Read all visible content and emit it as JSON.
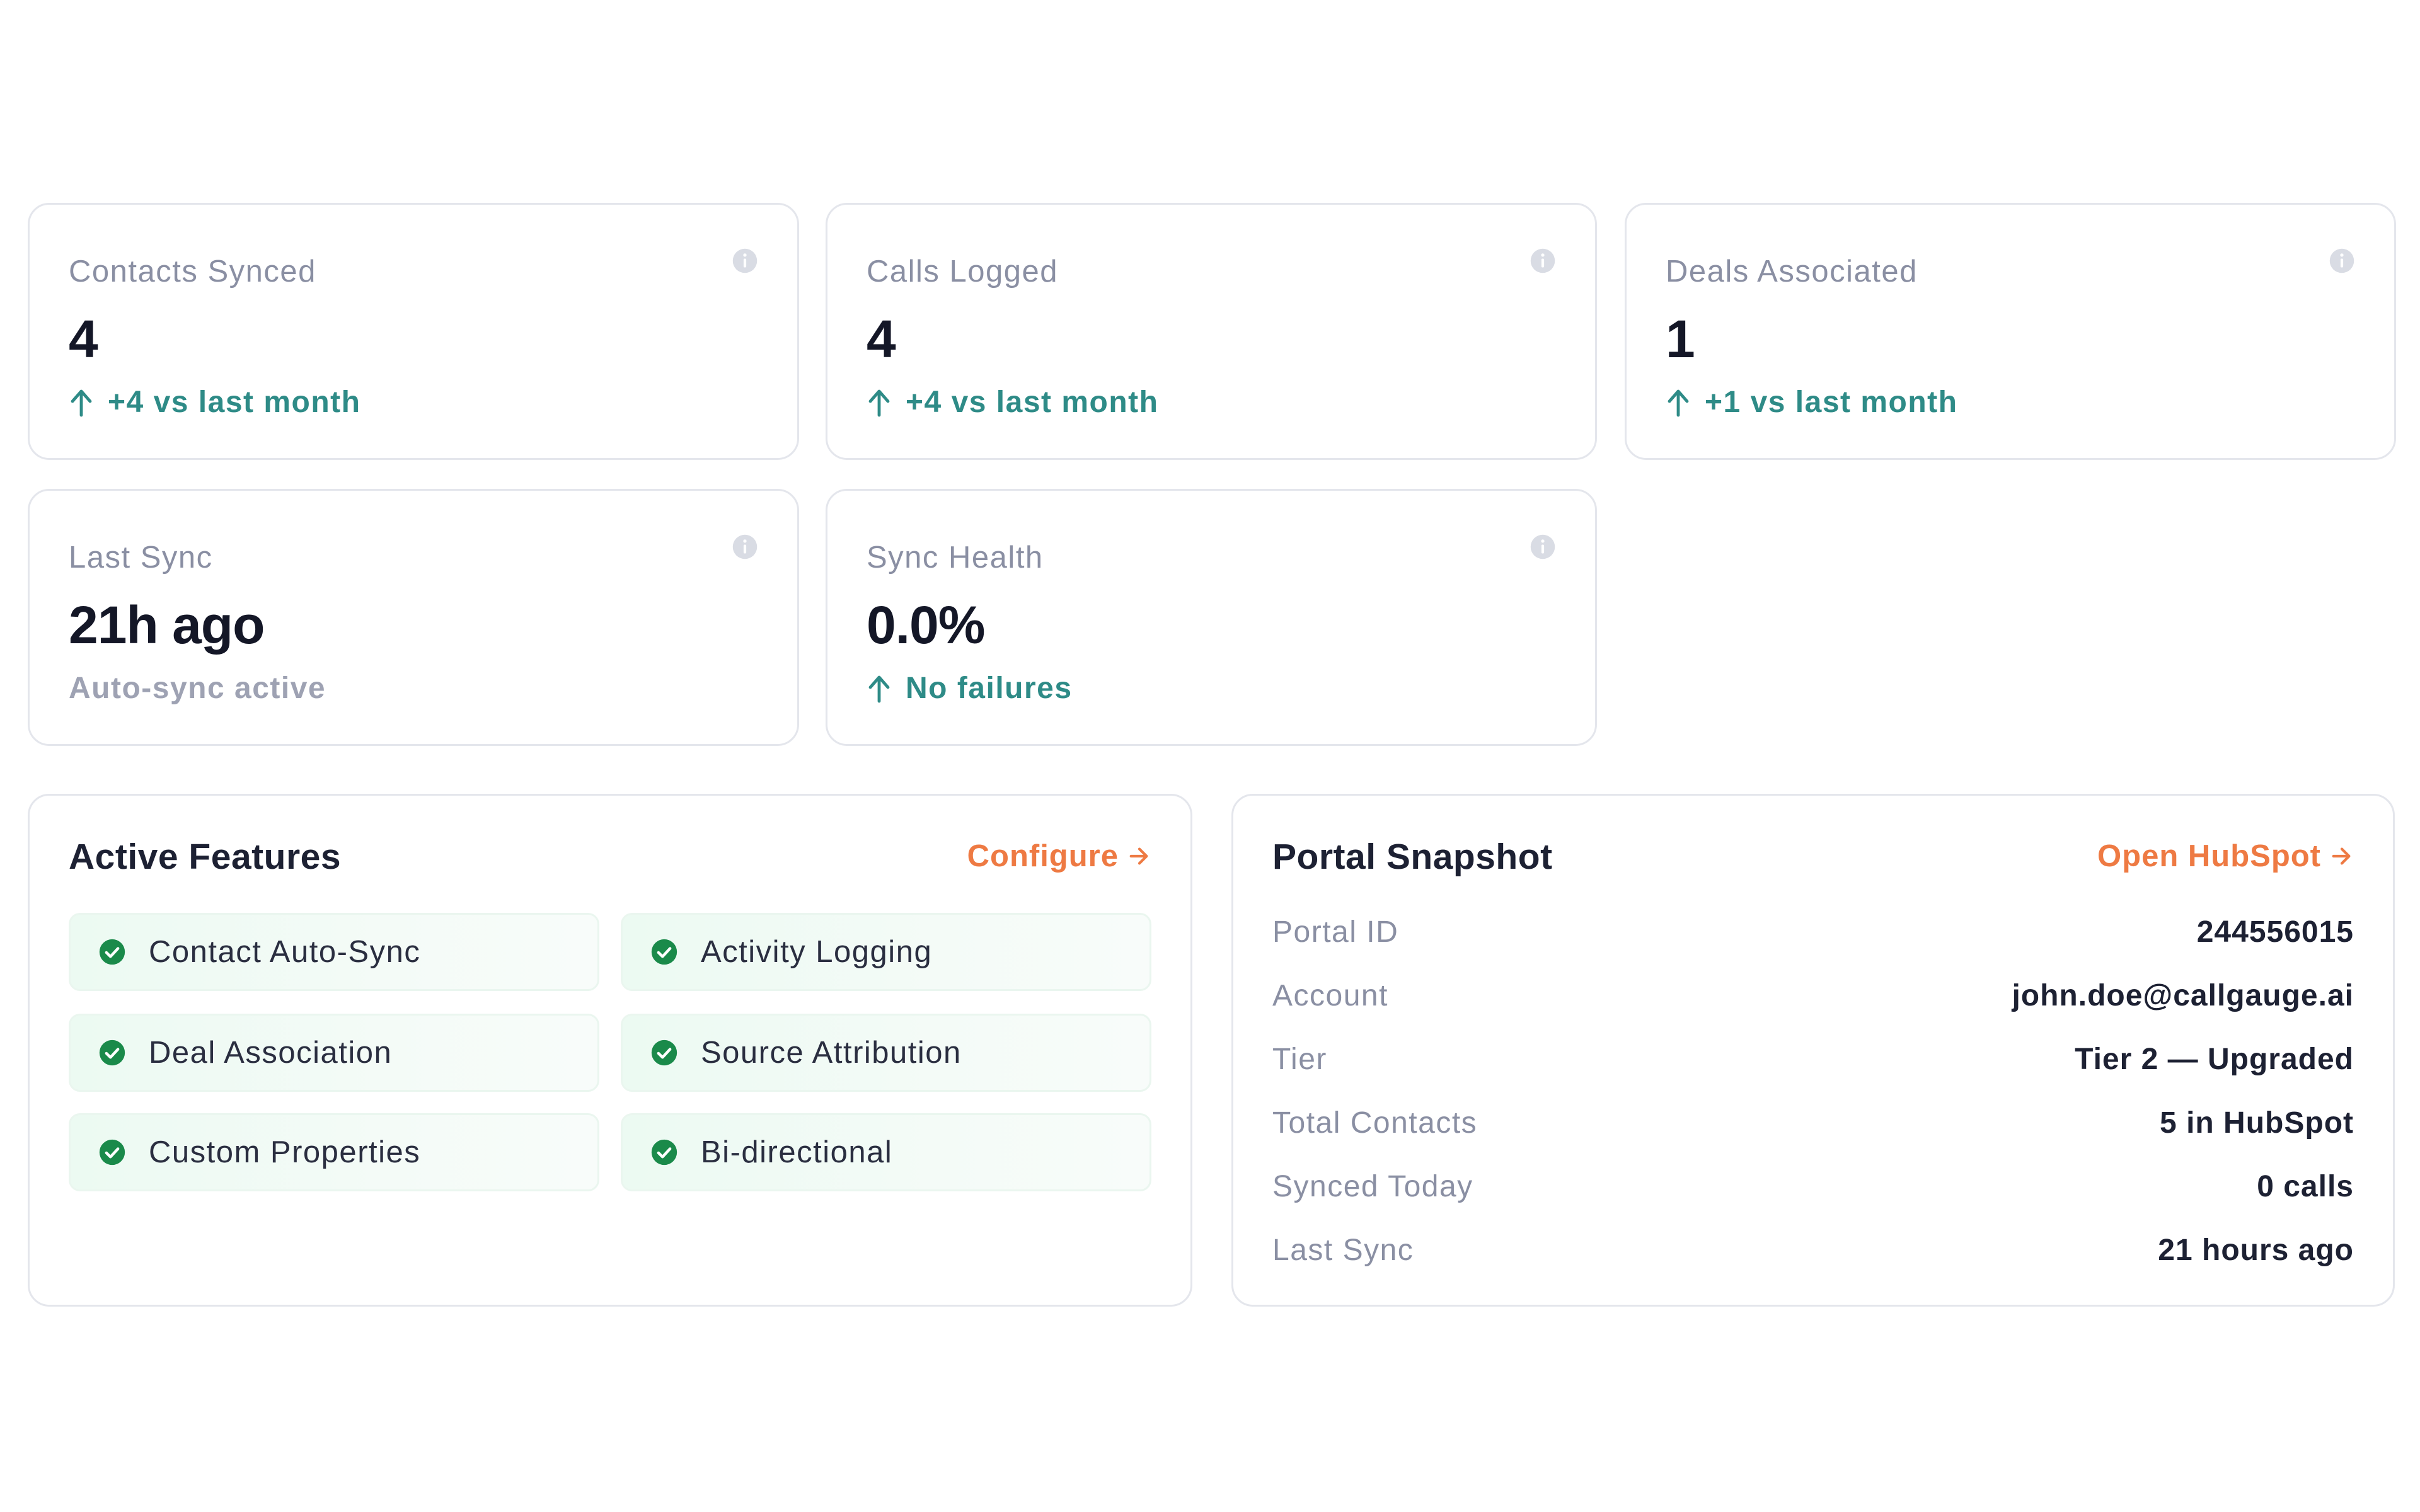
{
  "stats": [
    {
      "label": "Contacts Synced",
      "value": "4",
      "sub": "+4 vs last month",
      "trend": "up"
    },
    {
      "label": "Calls Logged",
      "value": "4",
      "sub": "+4 vs last month",
      "trend": "up"
    },
    {
      "label": "Deals Associated",
      "value": "1",
      "sub": "+1 vs last month",
      "trend": "up"
    },
    {
      "label": "Last Sync",
      "value": "21h ago",
      "sub": "Auto-sync active",
      "trend": "none"
    },
    {
      "label": "Sync Health",
      "value": "0.0%",
      "sub": "No failures",
      "trend": "up"
    }
  ],
  "features": {
    "title": "Active Features",
    "link": "Configure",
    "items": [
      "Contact Auto-Sync",
      "Activity Logging",
      "Deal Association",
      "Source Attribution",
      "Custom Properties",
      "Bi-directional"
    ]
  },
  "snapshot": {
    "title": "Portal Snapshot",
    "link": "Open HubSpot",
    "rows": [
      {
        "key": "Portal ID",
        "value": "244556015"
      },
      {
        "key": "Account",
        "value": "john.doe@callgauge.ai"
      },
      {
        "key": "Tier",
        "value": "Tier 2 — Upgraded"
      },
      {
        "key": "Total Contacts",
        "value": "5 in HubSpot"
      },
      {
        "key": "Synced Today",
        "value": "0 calls"
      },
      {
        "key": "Last Sync",
        "value": "21 hours ago"
      }
    ]
  },
  "colors": {
    "accent": "#ee7a43",
    "positive": "#2e8b87",
    "check": "#1a8a4a",
    "border": "#e4e6ec"
  },
  "icons": {
    "info": "info-icon",
    "trend": "arrow-up-icon",
    "check": "check-circle-icon",
    "link": "arrow-right-icon"
  }
}
